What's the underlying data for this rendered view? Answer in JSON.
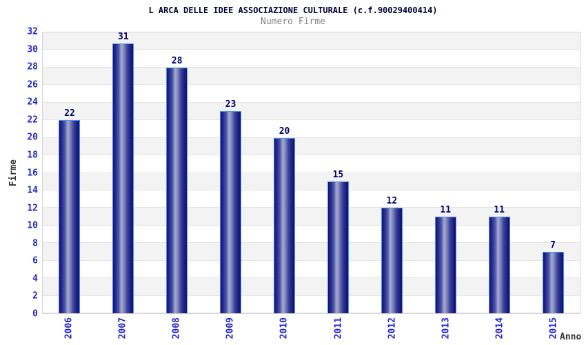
{
  "chart_data": {
    "type": "bar",
    "title": "L ARCA DELLE IDEE ASSOCIAZIONE CULTURALE (c.f.90029400414)",
    "subtitle": "Numero Firme",
    "xlabel": "Anno",
    "ylabel": "Firme",
    "categories": [
      "2006",
      "2007",
      "2008",
      "2009",
      "2010",
      "2011",
      "2012",
      "2013",
      "2014",
      "2015"
    ],
    "values": [
      22,
      31,
      28,
      23,
      20,
      15,
      12,
      11,
      11,
      7
    ],
    "ylim": [
      0,
      32
    ],
    "ytick_step": 2,
    "grid": "horizontal-stripes",
    "legend": "none",
    "colors": {
      "bar_fill_dark": "#1b1b80",
      "bar_fill_light": "#a3abd4",
      "bar_border": "#4795e8",
      "tick_label": "#2222cc",
      "value_label": "#000066",
      "axis_title": "#333333",
      "stripe_gray": "#f3f3f3",
      "grid_line": "#e4e4e4",
      "plot_border": "#d4d4d4",
      "title": "#000033",
      "subtitle": "#808080"
    }
  }
}
